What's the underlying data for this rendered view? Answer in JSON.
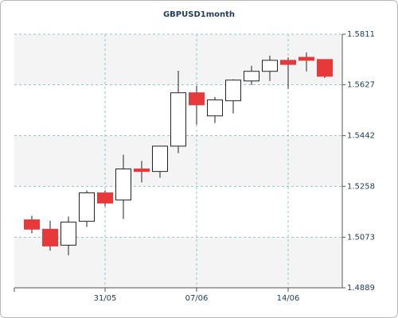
{
  "chart_data": {
    "type": "candlestick",
    "title": "GBPUSD1month",
    "categories": [
      null,
      null,
      null,
      null,
      "31/05",
      null,
      null,
      null,
      null,
      "07/06",
      null,
      null,
      null,
      null,
      "14/06",
      null,
      null
    ],
    "open": [
      1.5136,
      1.5102,
      1.5044,
      1.5131,
      1.5234,
      1.5208,
      1.5321,
      1.5312,
      1.5404,
      1.5598,
      1.5514,
      1.5569,
      1.5641,
      1.5676,
      1.5716,
      1.5727,
      1.5719
    ],
    "high": [
      1.5151,
      1.5133,
      1.5148,
      1.5243,
      1.5243,
      1.5373,
      1.535,
      1.5404,
      1.5678,
      1.5624,
      1.5583,
      1.5647,
      1.5696,
      1.5733,
      1.5727,
      1.5745,
      1.5719
    ],
    "low": [
      1.5087,
      1.5024,
      1.5007,
      1.511,
      1.5185,
      1.5139,
      1.5272,
      1.5289,
      1.5379,
      1.5482,
      1.5488,
      1.5523,
      1.5626,
      1.5641,
      1.5612,
      1.5676,
      1.5652
    ],
    "close": [
      1.5102,
      1.5041,
      1.5128,
      1.5234,
      1.5197,
      1.5321,
      1.5312,
      1.5404,
      1.5598,
      1.5554,
      1.5572,
      1.5644,
      1.5676,
      1.5716,
      1.5701,
      1.5716,
      1.5658
    ],
    "up_color": "#ffffff",
    "down_color": "#e8393a",
    "ylim": [
      1.4889,
      1.5811
    ],
    "yticks": [
      1.4889,
      1.5073,
      1.5258,
      1.5442,
      1.5627,
      1.5811
    ],
    "grid": true
  }
}
